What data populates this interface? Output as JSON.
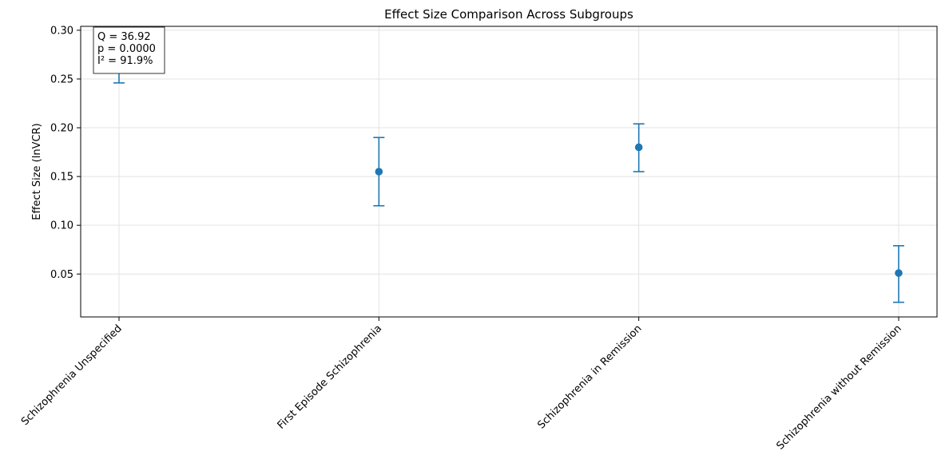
{
  "chart_data": {
    "type": "scatter",
    "title": "Effect Size Comparison Across Subgroups",
    "xlabel": "",
    "ylabel": "Effect Size (lnVCR)",
    "categories": [
      "Schizophrenia Unspecified",
      "First Episode Schizophrenia",
      "Schizophrenia in Remission",
      "Schizophrenia without Remission"
    ],
    "values": [
      0.271,
      0.155,
      0.18,
      0.051
    ],
    "ci_lower": [
      0.246,
      0.12,
      0.155,
      0.021
    ],
    "ci_upper": [
      0.296,
      0.19,
      0.204,
      0.079
    ],
    "yticks": [
      "0.05",
      "0.10",
      "0.15",
      "0.20",
      "0.25",
      "0.30"
    ],
    "ylim": [
      0.006,
      0.304
    ],
    "grid": true,
    "marker_color": "#1f77b4",
    "annotation": {
      "lines": [
        "Q = 36.92",
        "p = 0.0000",
        "I² = 91.9%"
      ],
      "placement": "top-left"
    }
  }
}
